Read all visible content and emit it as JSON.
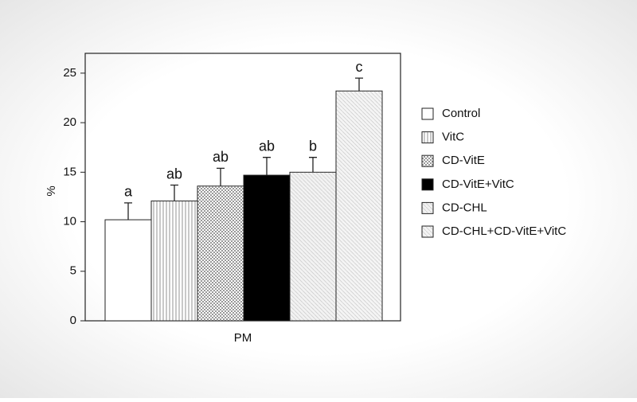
{
  "chart_data": {
    "type": "bar",
    "y_label": "%",
    "categories": [
      "PM"
    ],
    "ylim": [
      0,
      27
    ],
    "yticks": [
      0,
      5,
      10,
      15,
      20,
      25
    ],
    "series": [
      {
        "name": "Control",
        "color": "#ffffff",
        "pattern": "none",
        "values": [
          10.2
        ],
        "errors": [
          1.7
        ],
        "letters": [
          "a"
        ]
      },
      {
        "name": "VitC",
        "color": "#ffffff",
        "pattern": "vertical",
        "values": [
          12.1
        ],
        "errors": [
          1.6
        ],
        "letters": [
          "ab"
        ]
      },
      {
        "name": "CD-VitE",
        "color": "#ffffff",
        "pattern": "crosshatch",
        "values": [
          13.6
        ],
        "errors": [
          1.8
        ],
        "letters": [
          "ab"
        ]
      },
      {
        "name": "CD-VitE+VitC",
        "color": "#000000",
        "pattern": "none",
        "values": [
          14.7
        ],
        "errors": [
          1.8
        ],
        "letters": [
          "ab"
        ]
      },
      {
        "name": "CD-CHL",
        "color": "#f2f2f2",
        "pattern": "diagonal",
        "values": [
          15.0
        ],
        "errors": [
          1.5
        ],
        "letters": [
          "b"
        ]
      },
      {
        "name": "CD-CHL+CD-VitE+VitC",
        "color": "#f4f4f4",
        "pattern": "diagonal",
        "values": [
          23.2
        ],
        "errors": [
          1.3
        ],
        "letters": [
          "c"
        ]
      }
    ]
  }
}
